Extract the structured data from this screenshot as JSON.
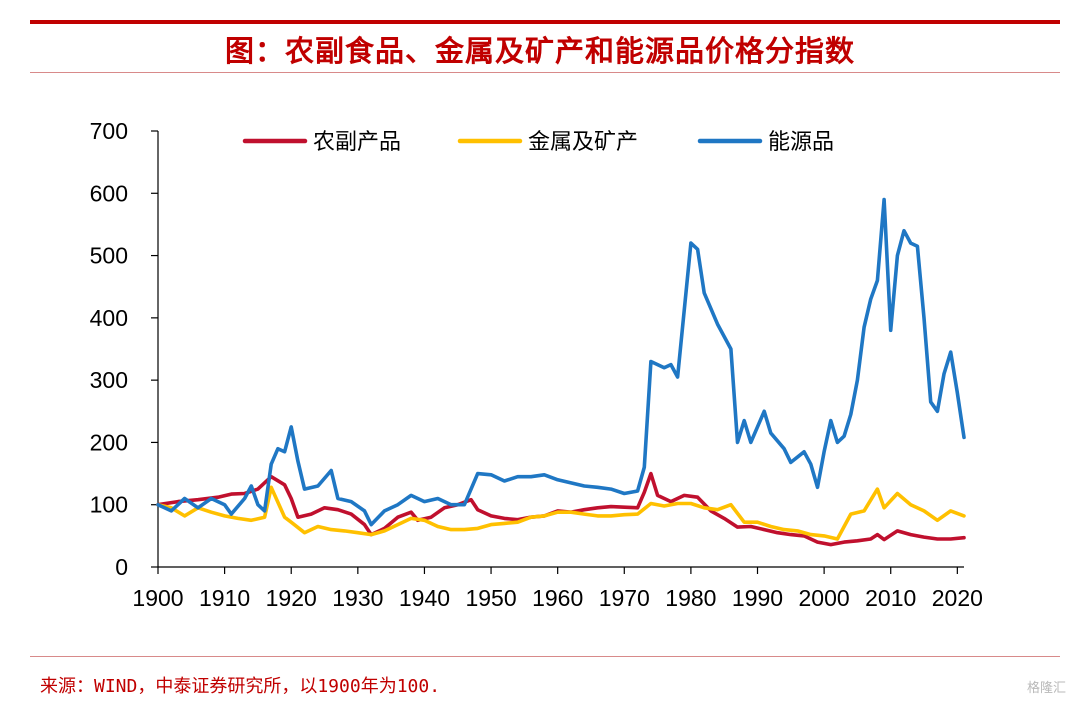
{
  "header": {
    "title": "图：农副食品、金属及矿产和能源品价格分指数"
  },
  "footer": {
    "source": "来源：WIND，中泰证券研究所，以1900年为100.",
    "watermark": "格隆汇"
  },
  "colors": {
    "accent": "#c00000",
    "agri": "#c0102e",
    "metal": "#ffc000",
    "energy": "#1f77c4"
  },
  "chart_data": {
    "type": "line",
    "title": "图：农副食品、金属及矿产和能源品价格分指数",
    "xlabel": "",
    "ylabel": "",
    "xlim": [
      1900,
      2021
    ],
    "ylim": [
      0,
      700
    ],
    "x_ticks": [
      1900,
      1910,
      1920,
      1930,
      1940,
      1950,
      1960,
      1970,
      1980,
      1990,
      2000,
      2010,
      2020
    ],
    "y_ticks": [
      0,
      100,
      200,
      300,
      400,
      500,
      600,
      700
    ],
    "grid": false,
    "legend_position": "top",
    "series": [
      {
        "name": "农副产品",
        "color": "#c0102e",
        "points": [
          [
            1900,
            100
          ],
          [
            1903,
            105
          ],
          [
            1906,
            108
          ],
          [
            1909,
            112
          ],
          [
            1911,
            117
          ],
          [
            1913,
            118
          ],
          [
            1915,
            125
          ],
          [
            1917,
            145
          ],
          [
            1919,
            132
          ],
          [
            1920,
            110
          ],
          [
            1921,
            80
          ],
          [
            1923,
            85
          ],
          [
            1925,
            95
          ],
          [
            1927,
            92
          ],
          [
            1929,
            85
          ],
          [
            1931,
            68
          ],
          [
            1932,
            52
          ],
          [
            1934,
            62
          ],
          [
            1936,
            80
          ],
          [
            1938,
            88
          ],
          [
            1939,
            75
          ],
          [
            1941,
            80
          ],
          [
            1943,
            95
          ],
          [
            1945,
            100
          ],
          [
            1947,
            108
          ],
          [
            1948,
            92
          ],
          [
            1950,
            82
          ],
          [
            1952,
            78
          ],
          [
            1954,
            76
          ],
          [
            1956,
            80
          ],
          [
            1958,
            82
          ],
          [
            1960,
            90
          ],
          [
            1962,
            88
          ],
          [
            1964,
            92
          ],
          [
            1966,
            95
          ],
          [
            1968,
            97
          ],
          [
            1970,
            96
          ],
          [
            1972,
            95
          ],
          [
            1973,
            120
          ],
          [
            1974,
            150
          ],
          [
            1975,
            115
          ],
          [
            1977,
            105
          ],
          [
            1979,
            115
          ],
          [
            1981,
            112
          ],
          [
            1983,
            90
          ],
          [
            1985,
            78
          ],
          [
            1987,
            64
          ],
          [
            1989,
            65
          ],
          [
            1991,
            60
          ],
          [
            1993,
            55
          ],
          [
            1995,
            52
          ],
          [
            1997,
            50
          ],
          [
            1999,
            40
          ],
          [
            2001,
            36
          ],
          [
            2003,
            40
          ],
          [
            2005,
            42
          ],
          [
            2007,
            45
          ],
          [
            2008,
            52
          ],
          [
            2009,
            44
          ],
          [
            2011,
            58
          ],
          [
            2013,
            52
          ],
          [
            2015,
            48
          ],
          [
            2017,
            45
          ],
          [
            2019,
            45
          ],
          [
            2021,
            47
          ]
        ]
      },
      {
        "name": "金属及矿产",
        "color": "#ffc000",
        "points": [
          [
            1900,
            100
          ],
          [
            1902,
            95
          ],
          [
            1904,
            82
          ],
          [
            1906,
            95
          ],
          [
            1908,
            88
          ],
          [
            1910,
            82
          ],
          [
            1912,
            78
          ],
          [
            1914,
            75
          ],
          [
            1916,
            80
          ],
          [
            1917,
            128
          ],
          [
            1919,
            80
          ],
          [
            1920,
            72
          ],
          [
            1922,
            55
          ],
          [
            1924,
            65
          ],
          [
            1926,
            60
          ],
          [
            1928,
            58
          ],
          [
            1930,
            55
          ],
          [
            1932,
            52
          ],
          [
            1934,
            58
          ],
          [
            1936,
            68
          ],
          [
            1938,
            78
          ],
          [
            1940,
            75
          ],
          [
            1942,
            65
          ],
          [
            1944,
            60
          ],
          [
            1946,
            60
          ],
          [
            1948,
            62
          ],
          [
            1950,
            68
          ],
          [
            1952,
            70
          ],
          [
            1954,
            72
          ],
          [
            1956,
            80
          ],
          [
            1958,
            82
          ],
          [
            1960,
            88
          ],
          [
            1962,
            88
          ],
          [
            1964,
            85
          ],
          [
            1966,
            82
          ],
          [
            1968,
            82
          ],
          [
            1970,
            84
          ],
          [
            1972,
            85
          ],
          [
            1974,
            102
          ],
          [
            1976,
            98
          ],
          [
            1978,
            102
          ],
          [
            1980,
            102
          ],
          [
            1982,
            95
          ],
          [
            1984,
            92
          ],
          [
            1986,
            100
          ],
          [
            1988,
            72
          ],
          [
            1990,
            72
          ],
          [
            1992,
            65
          ],
          [
            1994,
            60
          ],
          [
            1996,
            58
          ],
          [
            1998,
            52
          ],
          [
            2000,
            50
          ],
          [
            2002,
            45
          ],
          [
            2004,
            85
          ],
          [
            2006,
            90
          ],
          [
            2008,
            125
          ],
          [
            2009,
            95
          ],
          [
            2011,
            118
          ],
          [
            2013,
            100
          ],
          [
            2015,
            90
          ],
          [
            2017,
            75
          ],
          [
            2019,
            90
          ],
          [
            2021,
            82
          ]
        ]
      },
      {
        "name": "能源品",
        "color": "#1f77c4",
        "points": [
          [
            1900,
            100
          ],
          [
            1902,
            90
          ],
          [
            1904,
            110
          ],
          [
            1906,
            95
          ],
          [
            1908,
            110
          ],
          [
            1910,
            100
          ],
          [
            1911,
            85
          ],
          [
            1913,
            110
          ],
          [
            1914,
            130
          ],
          [
            1915,
            100
          ],
          [
            1916,
            90
          ],
          [
            1917,
            165
          ],
          [
            1918,
            190
          ],
          [
            1919,
            185
          ],
          [
            1920,
            225
          ],
          [
            1921,
            170
          ],
          [
            1922,
            125
          ],
          [
            1924,
            130
          ],
          [
            1926,
            155
          ],
          [
            1927,
            110
          ],
          [
            1929,
            105
          ],
          [
            1931,
            90
          ],
          [
            1932,
            68
          ],
          [
            1934,
            90
          ],
          [
            1936,
            100
          ],
          [
            1938,
            115
          ],
          [
            1940,
            105
          ],
          [
            1942,
            110
          ],
          [
            1944,
            100
          ],
          [
            1946,
            100
          ],
          [
            1948,
            150
          ],
          [
            1950,
            148
          ],
          [
            1952,
            138
          ],
          [
            1954,
            145
          ],
          [
            1956,
            145
          ],
          [
            1958,
            148
          ],
          [
            1960,
            140
          ],
          [
            1962,
            135
          ],
          [
            1964,
            130
          ],
          [
            1966,
            128
          ],
          [
            1968,
            125
          ],
          [
            1970,
            118
          ],
          [
            1972,
            122
          ],
          [
            1973,
            160
          ],
          [
            1974,
            330
          ],
          [
            1976,
            320
          ],
          [
            1977,
            325
          ],
          [
            1978,
            305
          ],
          [
            1980,
            520
          ],
          [
            1981,
            510
          ],
          [
            1982,
            440
          ],
          [
            1984,
            390
          ],
          [
            1986,
            350
          ],
          [
            1987,
            200
          ],
          [
            1988,
            235
          ],
          [
            1989,
            200
          ],
          [
            1991,
            250
          ],
          [
            1992,
            215
          ],
          [
            1994,
            190
          ],
          [
            1995,
            168
          ],
          [
            1997,
            185
          ],
          [
            1998,
            165
          ],
          [
            1999,
            128
          ],
          [
            2000,
            185
          ],
          [
            2001,
            235
          ],
          [
            2002,
            200
          ],
          [
            2003,
            210
          ],
          [
            2004,
            245
          ],
          [
            2005,
            300
          ],
          [
            2006,
            385
          ],
          [
            2007,
            430
          ],
          [
            2008,
            460
          ],
          [
            2009,
            590
          ],
          [
            2010,
            380
          ],
          [
            2011,
            500
          ],
          [
            2012,
            540
          ],
          [
            2013,
            520
          ],
          [
            2014,
            515
          ],
          [
            2015,
            400
          ],
          [
            2016,
            265
          ],
          [
            2017,
            250
          ],
          [
            2018,
            310
          ],
          [
            2019,
            345
          ],
          [
            2020,
            280
          ],
          [
            2021,
            208
          ]
        ]
      }
    ]
  }
}
